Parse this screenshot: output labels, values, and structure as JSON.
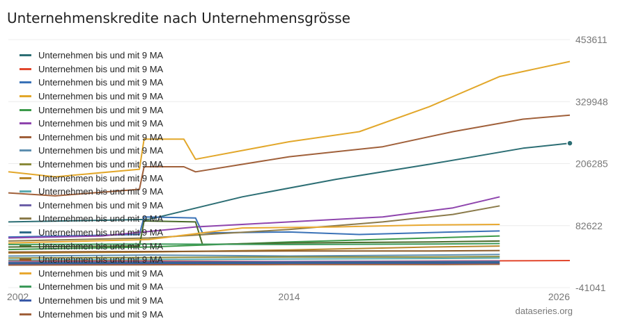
{
  "title": "Unternehmenskredite nach Unternehmensgrösse",
  "source": "dataseries.org",
  "chart_data": {
    "type": "line",
    "title": "Unternehmenskredite nach Unternehmensgrösse",
    "xlim": [
      2002,
      2026
    ],
    "ylim": [
      -41041,
      453611
    ],
    "x_ticks": [
      "2002",
      "2014",
      "2026"
    ],
    "y_ticks": [
      "453611",
      "329948",
      "206285",
      "82622",
      "-41041"
    ],
    "grid": true,
    "legend_position": "top-left",
    "series": [
      {
        "name": "Unternehmen bis und mit 9 MA",
        "color": "#2c6e74",
        "points": [
          [
            2002,
            90000
          ],
          [
            2008,
            95000
          ],
          [
            2012,
            140000
          ],
          [
            2016,
            175000
          ],
          [
            2020,
            205000
          ],
          [
            2024,
            237000
          ],
          [
            2026,
            247000
          ]
        ]
      },
      {
        "name": "Unternehmen bis und mit 9 MA",
        "color": "#e2472d",
        "points": [
          [
            2002,
            13000
          ],
          [
            2008,
            12000
          ],
          [
            2014,
            11000
          ],
          [
            2020,
            12000
          ],
          [
            2026,
            13000
          ]
        ]
      },
      {
        "name": "Unternehmen bis und mit 9 MA",
        "color": "#3a72b7",
        "points": [
          [
            2002,
            60000
          ],
          [
            2007.6,
            65000
          ],
          [
            2007.8,
            100000
          ],
          [
            2010,
            98000
          ],
          [
            2010.3,
            68000
          ],
          [
            2014,
            70000
          ],
          [
            2017,
            65000
          ],
          [
            2021,
            70000
          ],
          [
            2023,
            72000
          ]
        ]
      },
      {
        "name": "Unternehmen bis und mit 9 MA",
        "color": "#e2a72a",
        "points": [
          [
            2002,
            190000
          ],
          [
            2004,
            180000
          ],
          [
            2007.6,
            195000
          ],
          [
            2007.8,
            255000
          ],
          [
            2009.5,
            255000
          ],
          [
            2010,
            215000
          ],
          [
            2014,
            250000
          ],
          [
            2017,
            270000
          ],
          [
            2020,
            320000
          ],
          [
            2023,
            380000
          ],
          [
            2026,
            410000
          ]
        ]
      },
      {
        "name": "Unternehmen bis und mit 9 MA",
        "color": "#3c9a4a",
        "points": [
          [
            2002,
            35000
          ],
          [
            2008,
            40000
          ],
          [
            2014,
            50000
          ],
          [
            2020,
            58000
          ],
          [
            2023,
            62000
          ]
        ]
      },
      {
        "name": "Unternehmen bis und mit 9 MA",
        "color": "#8e44ad",
        "points": [
          [
            2002,
            58000
          ],
          [
            2006,
            62000
          ],
          [
            2010,
            80000
          ],
          [
            2014,
            90000
          ],
          [
            2018,
            100000
          ],
          [
            2021,
            118000
          ],
          [
            2023,
            140000
          ]
        ]
      },
      {
        "name": "Unternehmen bis und mit 9 MA",
        "color": "#a0603a",
        "points": [
          [
            2002,
            148000
          ],
          [
            2004,
            142000
          ],
          [
            2007.6,
            155000
          ],
          [
            2007.8,
            200000
          ],
          [
            2009.5,
            200000
          ],
          [
            2010,
            190000
          ],
          [
            2014,
            220000
          ],
          [
            2018,
            240000
          ],
          [
            2021,
            270000
          ],
          [
            2024,
            295000
          ],
          [
            2026,
            303000
          ]
        ]
      },
      {
        "name": "Unternehmen bis und mit 9 MA",
        "color": "#5e8fb0",
        "points": [
          [
            2002,
            22000
          ],
          [
            2008,
            24000
          ],
          [
            2014,
            22000
          ],
          [
            2020,
            24000
          ],
          [
            2023,
            25000
          ]
        ]
      },
      {
        "name": "Unternehmen bis und mit 9 MA",
        "color": "#8a8a3a",
        "points": [
          [
            2002,
            18000
          ],
          [
            2008,
            19000
          ],
          [
            2014,
            20000
          ],
          [
            2020,
            20000
          ],
          [
            2023,
            21000
          ]
        ]
      },
      {
        "name": "Unternehmen bis und mit 9 MA",
        "color": "#b8862a",
        "points": [
          [
            2002,
            28000
          ],
          [
            2008,
            30000
          ],
          [
            2014,
            34000
          ],
          [
            2020,
            40000
          ],
          [
            2023,
            42000
          ]
        ]
      },
      {
        "name": "Unternehmen bis und mit 9 MA",
        "color": "#5aaab0",
        "points": [
          [
            2002,
            14000
          ],
          [
            2008,
            15000
          ],
          [
            2014,
            16000
          ],
          [
            2020,
            17000
          ],
          [
            2023,
            18000
          ]
        ]
      },
      {
        "name": "Unternehmen bis und mit 9 MA",
        "color": "#6c5fa8",
        "points": [
          [
            2002,
            10000
          ],
          [
            2008,
            10500
          ],
          [
            2014,
            11000
          ],
          [
            2020,
            11500
          ],
          [
            2023,
            12000
          ]
        ]
      },
      {
        "name": "Unternehmen bis und mit 9 MA",
        "color": "#8a7a4a",
        "points": [
          [
            2002,
            52000
          ],
          [
            2008,
            58000
          ],
          [
            2014,
            75000
          ],
          [
            2018,
            90000
          ],
          [
            2021,
            105000
          ],
          [
            2023,
            122000
          ]
        ]
      },
      {
        "name": "Unternehmen bis und mit 9 MA",
        "color": "#2e6a88",
        "points": [
          [
            2002,
            8000
          ],
          [
            2008,
            8500
          ],
          [
            2014,
            9000
          ],
          [
            2020,
            9500
          ],
          [
            2023,
            10000
          ]
        ]
      },
      {
        "name": "Unternehmen bis und mit 9 MA",
        "color": "#4a6a2a",
        "points": [
          [
            2002,
            40000
          ],
          [
            2007.6,
            42000
          ],
          [
            2007.8,
            92000
          ],
          [
            2010,
            90000
          ],
          [
            2010.3,
            45000
          ],
          [
            2014,
            48000
          ],
          [
            2020,
            50000
          ],
          [
            2023,
            52000
          ]
        ]
      },
      {
        "name": "Unternehmen bis und mit 9 MA",
        "color": "#8a5a2a",
        "points": [
          [
            2002,
            30000
          ],
          [
            2008,
            31000
          ],
          [
            2014,
            32000
          ],
          [
            2020,
            32000
          ],
          [
            2023,
            33000
          ]
        ]
      },
      {
        "name": "Unternehmen bis und mit 9 MA",
        "color": "#e8a830",
        "points": [
          [
            2002,
            48000
          ],
          [
            2008,
            55000
          ],
          [
            2012,
            78000
          ],
          [
            2016,
            80000
          ],
          [
            2020,
            84000
          ],
          [
            2023,
            85000
          ]
        ]
      },
      {
        "name": "Unternehmen bis und mit 9 MA",
        "color": "#3c9a5a",
        "points": [
          [
            2002,
            45000
          ],
          [
            2008,
            46000
          ],
          [
            2014,
            45000
          ],
          [
            2020,
            46000
          ],
          [
            2023,
            47000
          ]
        ]
      },
      {
        "name": "Unternehmen bis und mit 9 MA",
        "color": "#3a5aa8",
        "points": [
          [
            2002,
            6000
          ],
          [
            2008,
            6500
          ],
          [
            2014,
            7000
          ],
          [
            2020,
            7000
          ],
          [
            2023,
            7500
          ]
        ]
      },
      {
        "name": "Unternehmen bis und mit 9 MA",
        "color": "#a0603a",
        "points": [
          [
            2002,
            4000
          ],
          [
            2008,
            4500
          ],
          [
            2014,
            5000
          ],
          [
            2020,
            5000
          ],
          [
            2023,
            5500
          ]
        ]
      }
    ]
  }
}
